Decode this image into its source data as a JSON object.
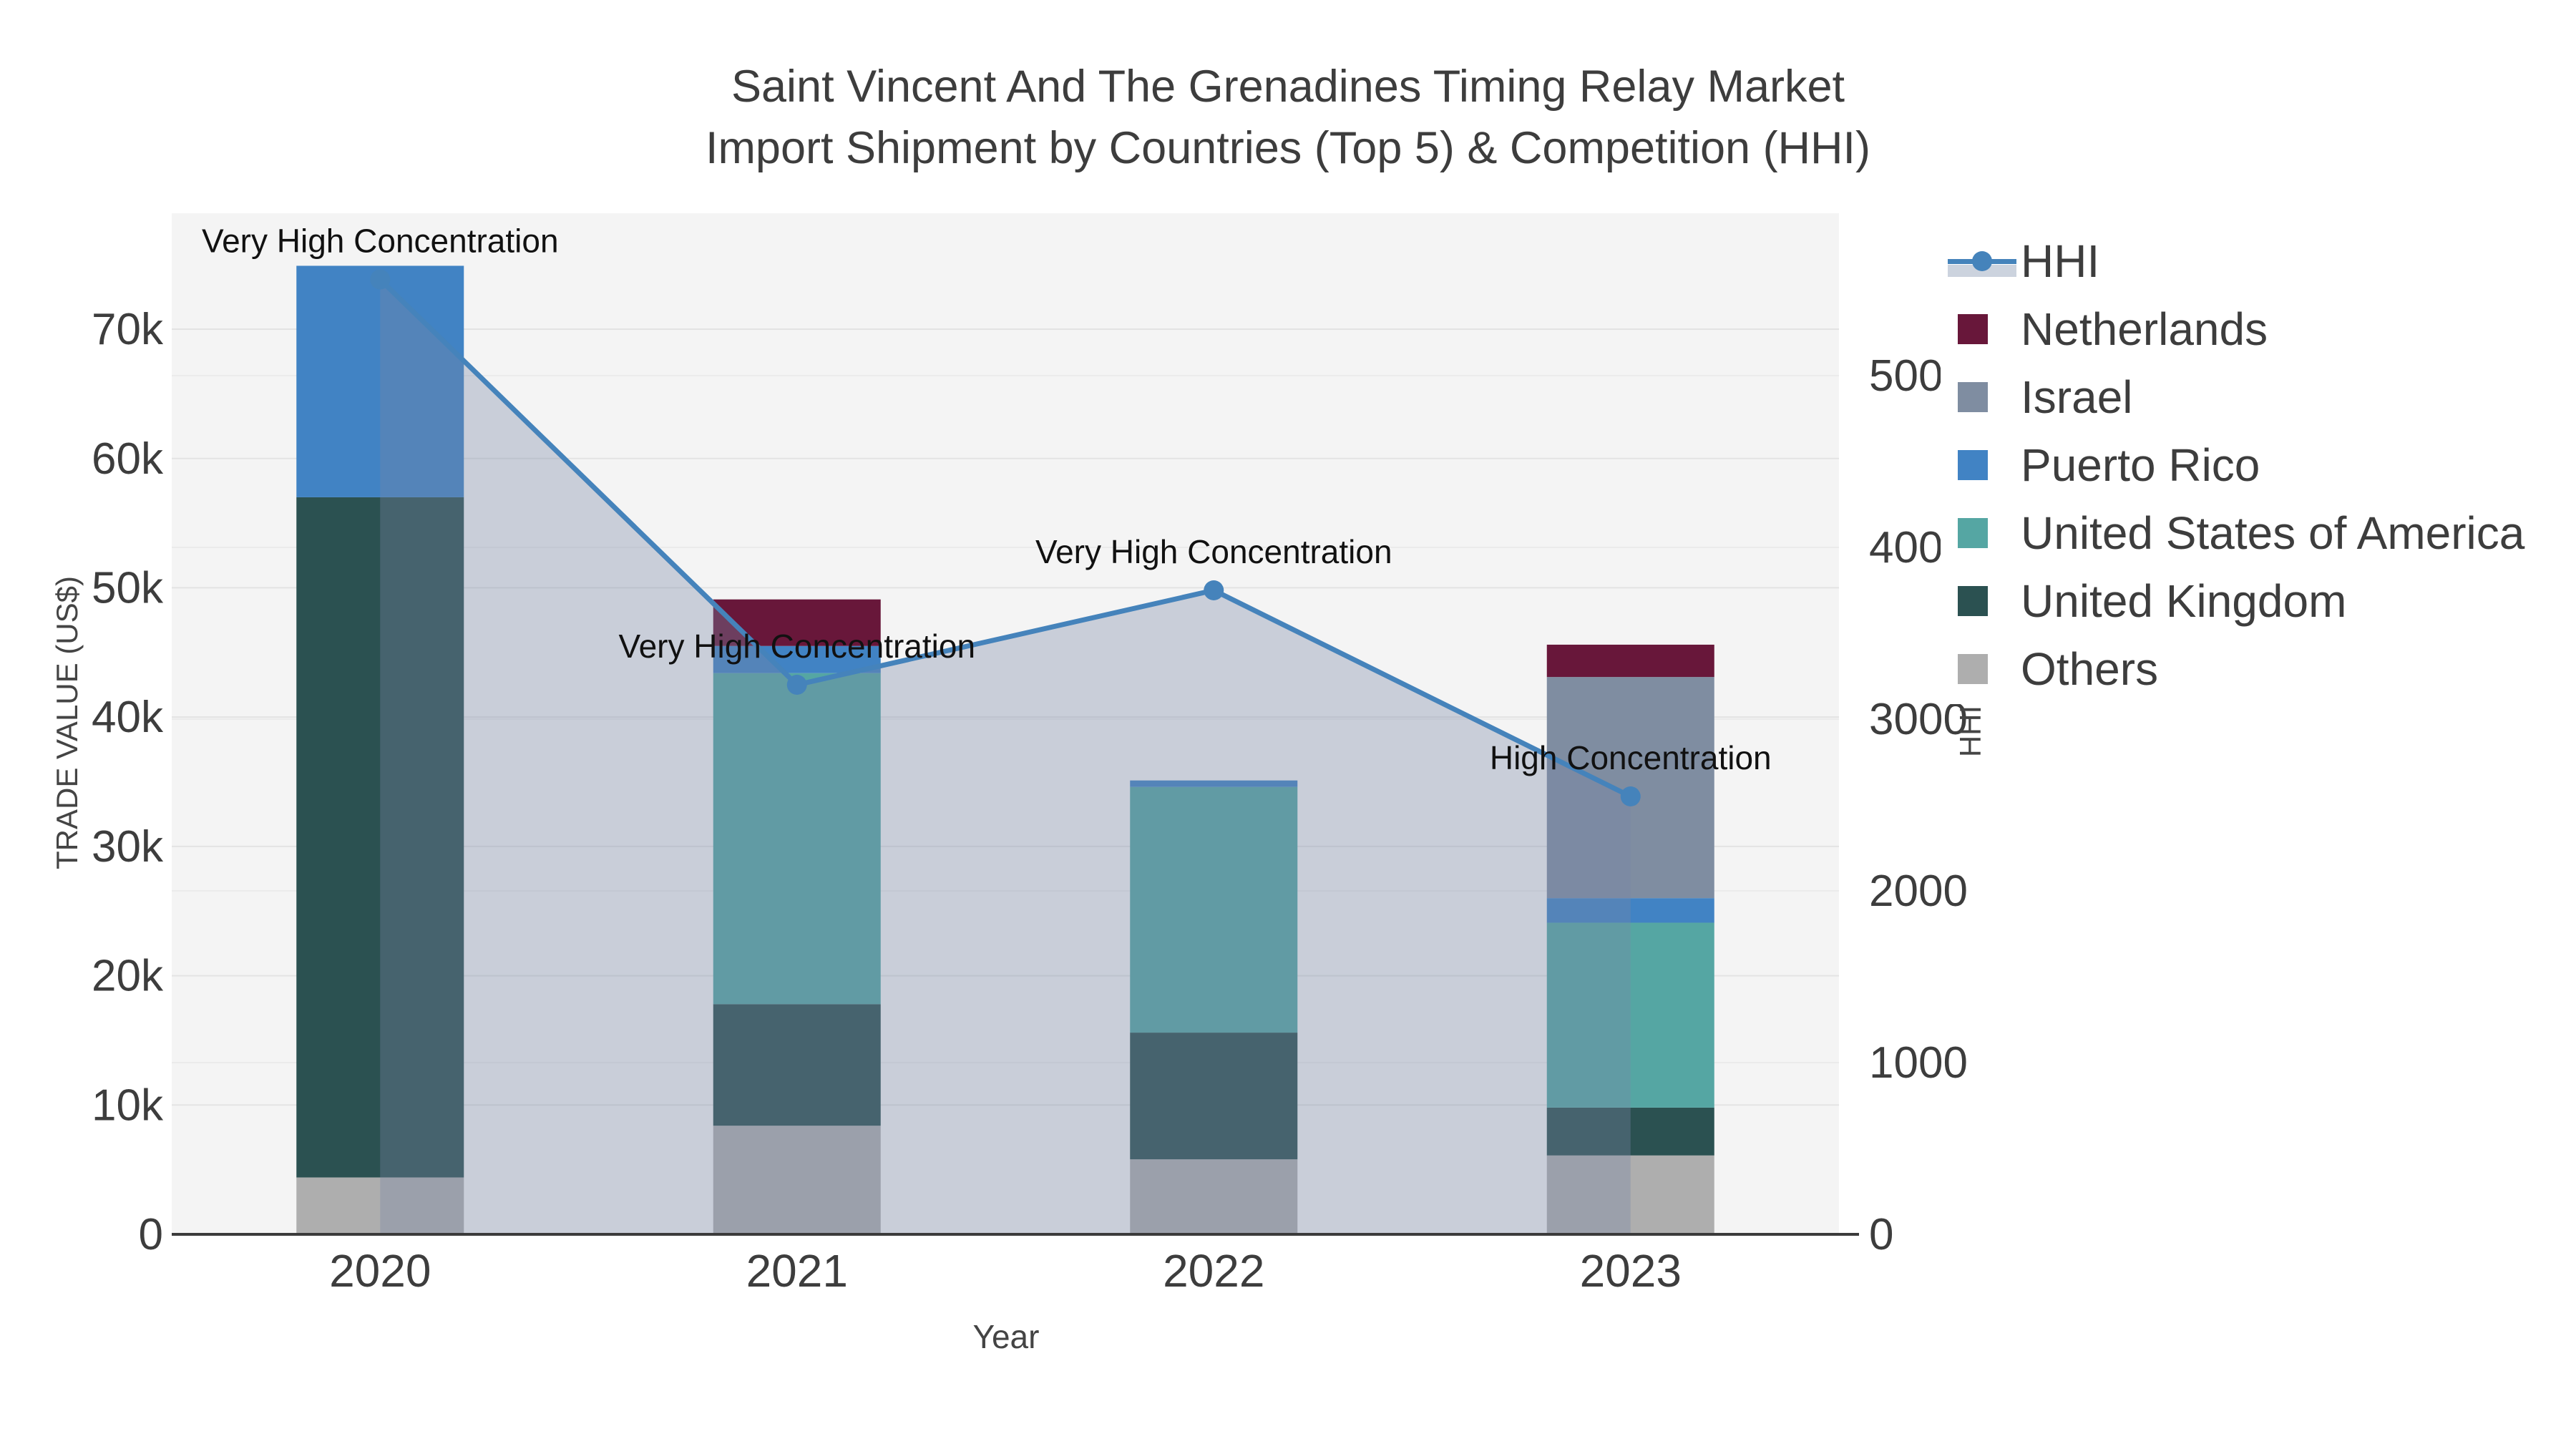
{
  "title": {
    "line1": "Saint Vincent And The Grenadines Timing Relay Market",
    "line2": "Import Shipment by Countries (Top 5) & Competition (HHI)"
  },
  "axes": {
    "x": {
      "title": "Year",
      "ticks": [
        "2020",
        "2021",
        "2022",
        "2023"
      ]
    },
    "y_left": {
      "title": "TRADE VALUE (US$)",
      "ticks": [
        "0",
        "10k",
        "20k",
        "30k",
        "40k",
        "50k",
        "60k",
        "70k"
      ],
      "tick_values": [
        0,
        10000,
        20000,
        30000,
        40000,
        50000,
        60000,
        70000
      ]
    },
    "y_right": {
      "title": "HHI",
      "ticks": [
        "0",
        "1000",
        "2000",
        "3000",
        "4000",
        "5000"
      ],
      "tick_values": [
        0,
        1000,
        2000,
        3000,
        4000,
        5000
      ]
    }
  },
  "legend": {
    "items": [
      {
        "label": "HHI",
        "type": "line",
        "color": "#4583bb"
      },
      {
        "label": "Netherlands",
        "type": "swatch",
        "color": "#68173a"
      },
      {
        "label": "Israel",
        "type": "swatch",
        "color": "#7f8da1"
      },
      {
        "label": "Puerto Rico",
        "type": "swatch",
        "color": "#4183c4"
      },
      {
        "label": "United States of America",
        "type": "swatch",
        "color": "#55a6a3"
      },
      {
        "label": "United Kingdom",
        "type": "swatch",
        "color": "#2b5151"
      },
      {
        "label": "Others",
        "type": "swatch",
        "color": "#aeaeae"
      }
    ]
  },
  "chart_data": {
    "type": "combo-stacked-bar-and-line-area",
    "categories": [
      "2020",
      "2021",
      "2022",
      "2023"
    ],
    "bar_value_unit": "US$ trade value",
    "series": [
      {
        "name": "Others",
        "color": "#aeaeae",
        "values": [
          4400,
          8400,
          5800,
          6100
        ]
      },
      {
        "name": "United Kingdom",
        "color": "#2b5151",
        "values": [
          52600,
          9400,
          9800,
          3700
        ]
      },
      {
        "name": "United States of America",
        "color": "#55a6a3",
        "values": [
          0,
          25600,
          19000,
          14300
        ]
      },
      {
        "name": "Puerto Rico",
        "color": "#4183c4",
        "values": [
          17900,
          2100,
          500,
          1900
        ]
      },
      {
        "name": "Israel",
        "color": "#7f8da1",
        "values": [
          0,
          0,
          0,
          17100
        ]
      },
      {
        "name": "Netherlands",
        "color": "#68173a",
        "values": [
          0,
          3600,
          0,
          2500
        ]
      }
    ],
    "bar_totals": [
      74900,
      49100,
      35100,
      45600
    ],
    "line_series": {
      "name": "HHI",
      "color": "#4583bb",
      "area_fill": "rgba(120,135,165,0.35)",
      "values": [
        5560,
        3200,
        3750,
        2550
      ]
    },
    "annotations": [
      {
        "category": "2020",
        "text": "Very High Concentration"
      },
      {
        "category": "2021",
        "text": "Very High Concentration"
      },
      {
        "category": "2022",
        "text": "Very High Concentration"
      },
      {
        "category": "2023",
        "text": "High Concentration"
      }
    ],
    "xlabel": "Year",
    "ylabel_left": "TRADE VALUE (US$)",
    "ylabel_right": "HHI",
    "ylim_left": [
      0,
      78900
    ],
    "ylim_right": [
      0,
      5950
    ],
    "grid": true,
    "legend_position": "right"
  },
  "style": {
    "plot_bg": "#f4f4f4",
    "grid_left": "#e3e3e3",
    "grid_right": "#ebebeb",
    "axis_line": "#3b3b3b",
    "text_color": "#3d3d3d",
    "annotation_color": "#111111"
  }
}
